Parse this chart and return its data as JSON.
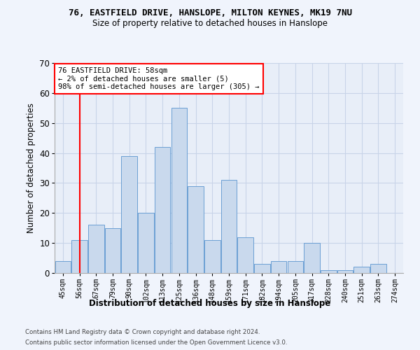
{
  "title1": "76, EASTFIELD DRIVE, HANSLOPE, MILTON KEYNES, MK19 7NU",
  "title2": "Size of property relative to detached houses in Hanslope",
  "xlabel": "Distribution of detached houses by size in Hanslope",
  "ylabel": "Number of detached properties",
  "bar_labels": [
    "45sqm",
    "56sqm",
    "67sqm",
    "79sqm",
    "90sqm",
    "102sqm",
    "113sqm",
    "125sqm",
    "136sqm",
    "148sqm",
    "159sqm",
    "171sqm",
    "182sqm",
    "194sqm",
    "205sqm",
    "217sqm",
    "228sqm",
    "240sqm",
    "251sqm",
    "263sqm",
    "274sqm"
  ],
  "bar_heights": [
    4,
    11,
    16,
    15,
    39,
    20,
    42,
    55,
    29,
    11,
    31,
    12,
    3,
    4,
    4,
    10,
    1,
    1,
    2,
    3,
    0
  ],
  "bar_color": "#c9d9ed",
  "bar_edge_color": "#6b9fd4",
  "grid_color": "#c8d4e8",
  "bg_color": "#e8eef8",
  "fig_color": "#f0f4fc",
  "annotation_text": "76 EASTFIELD DRIVE: 58sqm\n← 2% of detached houses are smaller (5)\n98% of semi-detached houses are larger (305) →",
  "annotation_box_edge": "red",
  "vline_x": 1,
  "vline_color": "red",
  "ylim": [
    0,
    70
  ],
  "yticks": [
    0,
    10,
    20,
    30,
    40,
    50,
    60,
    70
  ],
  "footer1": "Contains HM Land Registry data © Crown copyright and database right 2024.",
  "footer2": "Contains public sector information licensed under the Open Government Licence v3.0."
}
